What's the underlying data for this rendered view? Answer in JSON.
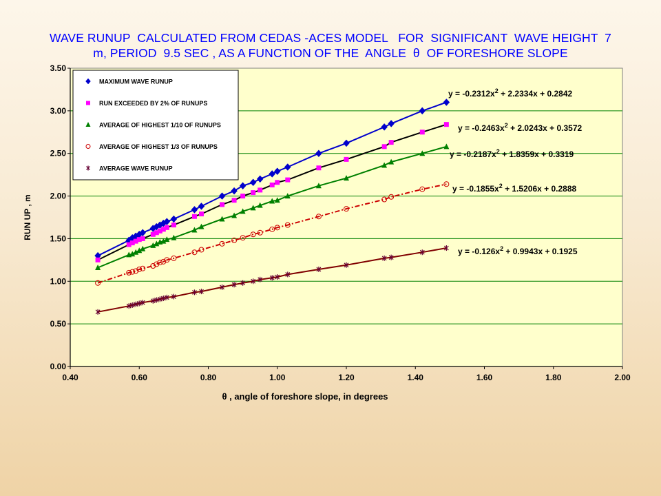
{
  "title_lines": [
    "WAVE RUNUP  CALCULATED FROM CEDAS -ACES MODEL   FOR  SIGNIFICANT  WAVE HEIGHT  7",
    "m, PERIOD  9.5 SEC , AS A FUNCTION OF THE  ANGLE  θ  OF FORESHORE SLOPE"
  ],
  "chart_data": {
    "type": "scatter",
    "title": "WAVE RUNUP  CALCULATED FROM CEDAS -ACES MODEL   FOR  SIGNIFICANT  WAVE HEIGHT  7 m, PERIOD  9.5 SEC , AS A FUNCTION OF THE  ANGLE  θ  OF FORESHORE SLOPE",
    "xlabel": "θ , angle of foreshore slope, in degrees",
    "ylabel": "RUN UP , m",
    "xlim": [
      0.4,
      2.0
    ],
    "ylim": [
      0.0,
      3.5
    ],
    "x_ticks": [
      "0.40",
      "0.60",
      "0.80",
      "1.00",
      "1.20",
      "1.40",
      "1.60",
      "1.80",
      "2.00"
    ],
    "y_ticks": [
      "0.00",
      "0.50",
      "1.00",
      "1.50",
      "2.00",
      "2.50",
      "3.00",
      "3.50"
    ],
    "grid": "horizontal",
    "legend_position": "top-left",
    "plot_background": "#ffffcc",
    "x": [
      0.48,
      0.57,
      0.58,
      0.59,
      0.6,
      0.61,
      0.64,
      0.65,
      0.66,
      0.67,
      0.68,
      0.7,
      0.76,
      0.78,
      0.84,
      0.875,
      0.9,
      0.93,
      0.95,
      0.985,
      1.0,
      1.03,
      1.12,
      1.2,
      1.31,
      1.33,
      1.42,
      1.49
    ],
    "series": [
      {
        "name": "MAXIMUM WAVE RUNUP",
        "marker": "diamond",
        "color": "#0000cc",
        "trendline_color": "#0000cc",
        "trendline_dash": "solid",
        "values": [
          1.3,
          1.48,
          1.51,
          1.53,
          1.55,
          1.57,
          1.62,
          1.64,
          1.66,
          1.68,
          1.7,
          1.73,
          1.84,
          1.88,
          2.0,
          2.06,
          2.12,
          2.16,
          2.2,
          2.26,
          2.29,
          2.34,
          2.5,
          2.62,
          2.81,
          2.85,
          3.0,
          3.1
        ],
        "equation": "y = -0.2312x² + 2.2334x + 0.2842"
      },
      {
        "name": "RUN EXCEEDED BY 2% OF RUNUPS",
        "marker": "square",
        "color": "#ff00ff",
        "trendline_color": "#000000",
        "trendline_dash": "solid",
        "values": [
          1.25,
          1.43,
          1.45,
          1.47,
          1.49,
          1.5,
          1.55,
          1.57,
          1.59,
          1.61,
          1.63,
          1.66,
          1.76,
          1.79,
          1.9,
          1.95,
          2.0,
          2.04,
          2.07,
          2.13,
          2.16,
          2.19,
          2.33,
          2.43,
          2.58,
          2.63,
          2.75,
          2.84
        ],
        "equation": "y =  -0.2463x² + 2.0243x + 0.3572"
      },
      {
        "name": "AVERAGE OF HIGHEST 1/10 OF RUNUPS",
        "marker": "triangle",
        "color": "#008000",
        "trendline_color": "#008000",
        "trendline_dash": "solid",
        "values": [
          1.16,
          1.31,
          1.32,
          1.34,
          1.36,
          1.38,
          1.42,
          1.44,
          1.46,
          1.47,
          1.49,
          1.51,
          1.6,
          1.64,
          1.73,
          1.77,
          1.82,
          1.86,
          1.89,
          1.94,
          1.95,
          2.0,
          2.12,
          2.21,
          2.36,
          2.4,
          2.5,
          2.58
        ],
        "equation": "y = -0.2187x² + 1.8359x + 0.3319"
      },
      {
        "name": "AVERAGE OF HIGHEST 1/3 OF RUNUPS",
        "marker": "circle",
        "color": "#cc0000",
        "trendline_color": "#cc0000",
        "trendline_dash": "dash-dot",
        "values": [
          0.98,
          1.1,
          1.11,
          1.12,
          1.14,
          1.15,
          1.18,
          1.2,
          1.22,
          1.23,
          1.25,
          1.27,
          1.34,
          1.37,
          1.44,
          1.48,
          1.51,
          1.55,
          1.57,
          1.61,
          1.63,
          1.66,
          1.76,
          1.85,
          1.96,
          1.99,
          2.08,
          2.14
        ],
        "equation": "y =  -0.1855x² + 1.5206x + 0.2888"
      },
      {
        "name": "AVERAGE WAVE RUNUP",
        "marker": "star",
        "color": "#660033",
        "trendline_color": "#800000",
        "trendline_dash": "solid",
        "values": [
          0.64,
          0.71,
          0.72,
          0.73,
          0.74,
          0.75,
          0.77,
          0.78,
          0.79,
          0.8,
          0.81,
          0.82,
          0.87,
          0.88,
          0.93,
          0.96,
          0.98,
          1.0,
          1.02,
          1.04,
          1.05,
          1.08,
          1.14,
          1.19,
          1.27,
          1.28,
          1.34,
          1.39
        ],
        "equation": "y =  -0.126x² + 0.9943x + 0.1925"
      }
    ]
  }
}
